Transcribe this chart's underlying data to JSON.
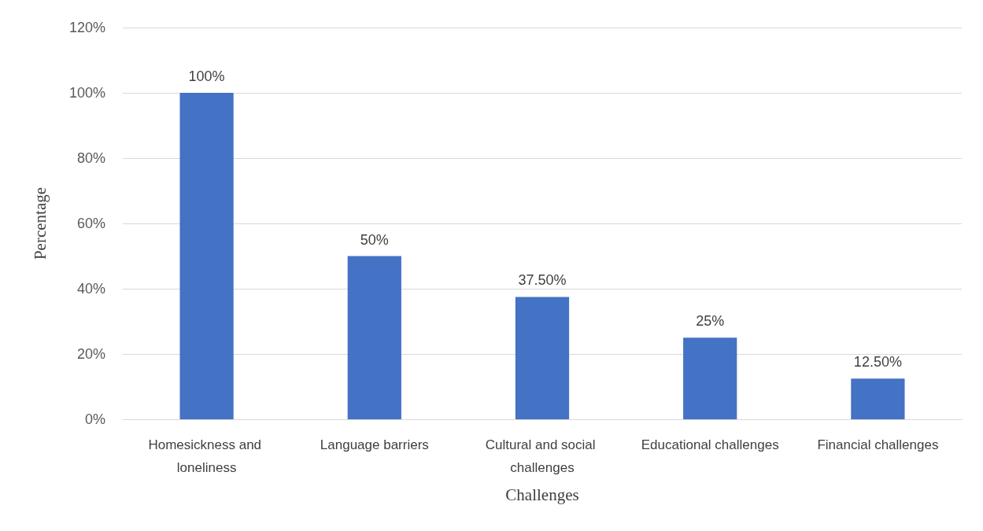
{
  "chart_data": {
    "type": "bar",
    "xlabel": "Challenges",
    "ylabel": "Percentage",
    "categories": [
      "Homesickness and loneliness",
      "Language barriers",
      "Cultural and social challenges",
      "Educational challenges",
      "Financial challenges"
    ],
    "values": [
      100,
      50,
      37.5,
      25,
      12.5
    ],
    "value_labels": [
      "100%",
      "50%",
      "37.50%",
      "25%",
      "12.50%"
    ],
    "color": "#4472c4",
    "ylim": [
      0,
      120
    ],
    "yticks": [
      {
        "value": 0,
        "label": "0%"
      },
      {
        "value": 20,
        "label": "20%"
      },
      {
        "value": 40,
        "label": "40%"
      },
      {
        "value": 60,
        "label": "60%"
      },
      {
        "value": 80,
        "label": "80%"
      },
      {
        "value": 100,
        "label": "100%"
      },
      {
        "value": 120,
        "label": "120%"
      }
    ],
    "grid": "y"
  }
}
